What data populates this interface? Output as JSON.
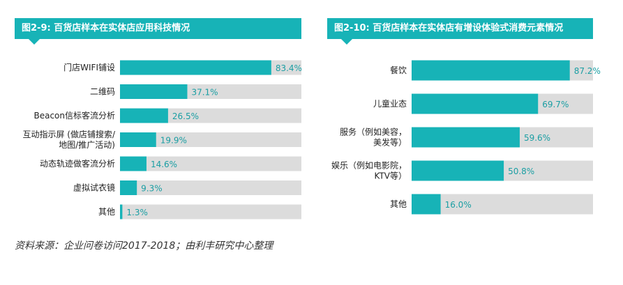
{
  "colors": {
    "accent": "#17b3b7",
    "track": "#dcdcdc",
    "value_text": "#1a9ea3"
  },
  "source_text": "资料来源：企业问卷访问2017-2018；由利丰研究中心整理",
  "chart_data": [
    {
      "type": "bar",
      "orientation": "horizontal",
      "title": "图2-9: 百货店样本在实体店应用科技情况",
      "categories": [
        "门店WIFI铺设",
        "二维码",
        "Beacon信标客流分析",
        "互动指示屏 (做店铺搜索/\n地图/推广活动)",
        "动态轨迹做客流分析",
        "虚拟试衣镜",
        "其他"
      ],
      "values": [
        83.4,
        37.1,
        26.5,
        19.9,
        14.6,
        9.3,
        1.3
      ],
      "value_labels": [
        "83.4%",
        "37.1%",
        "26.5%",
        "19.9%",
        "14.6%",
        "9.3%",
        "1.3%"
      ],
      "xlim": [
        0,
        100
      ],
      "unit": "%"
    },
    {
      "type": "bar",
      "orientation": "horizontal",
      "title": "图2-10: 百货店样本在实体店有增设体验式消费元素情况",
      "categories": [
        "餐饮",
        "儿童业态",
        "服务（例如美容，\n美发等）",
        "娱乐（例如电影院，\nKTV等）",
        "其他"
      ],
      "values": [
        87.2,
        69.7,
        59.6,
        50.8,
        16.0
      ],
      "value_labels": [
        "87.2%",
        "69.7%",
        "59.6%",
        "50.8%",
        "16.0%"
      ],
      "xlim": [
        0,
        100
      ],
      "unit": "%"
    }
  ]
}
